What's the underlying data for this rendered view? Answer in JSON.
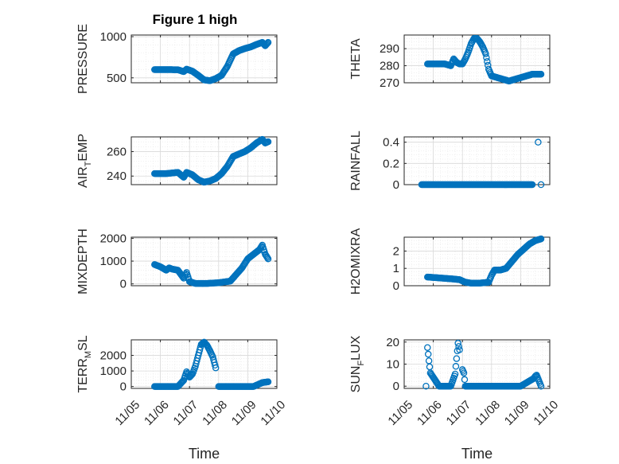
{
  "figure_title": "Figure 1 high",
  "colors": {
    "marker": "#0072bd",
    "axis": "#262626",
    "grid": "#d9d9d9",
    "minor_grid": "#e6e6e6"
  },
  "chart_data": [
    {
      "type": "scatter",
      "title": "Figure 1 high",
      "ylabel": {
        "main": "PRESSURE",
        "sub": ""
      },
      "xlabel": "",
      "x_tick_labels": [],
      "xlim": [
        "11/05",
        "11/10"
      ],
      "ylim": [
        440,
        1020
      ],
      "yticks": [
        500,
        1000
      ],
      "grid": true,
      "legend": "none",
      "series": [
        {
          "points": [
            [
              0.8,
              600
            ],
            [
              1.2,
              600
            ],
            [
              1.6,
              598
            ],
            [
              1.8,
              575
            ],
            [
              1.9,
              605
            ],
            [
              2.1,
              580
            ],
            [
              2.3,
              530
            ],
            [
              2.5,
              475
            ],
            [
              2.7,
              465
            ],
            [
              2.9,
              490
            ],
            [
              3.1,
              530
            ],
            [
              3.3,
              640
            ],
            [
              3.5,
              790
            ],
            [
              3.7,
              830
            ],
            [
              3.9,
              855
            ],
            [
              4.1,
              875
            ],
            [
              4.3,
              905
            ],
            [
              4.5,
              930
            ],
            [
              4.6,
              890
            ],
            [
              4.7,
              930
            ]
          ]
        }
      ]
    },
    {
      "type": "scatter",
      "title": "",
      "ylabel": {
        "main": "THETA",
        "sub": ""
      },
      "xlabel": "",
      "x_tick_labels": [],
      "xlim": [
        "11/05",
        "11/10"
      ],
      "ylim": [
        270,
        298
      ],
      "yticks": [
        270,
        280,
        290
      ],
      "grid": true,
      "legend": "none",
      "series": [
        {
          "points": [
            [
              0.8,
              281
            ],
            [
              1.2,
              281
            ],
            [
              1.4,
              281
            ],
            [
              1.6,
              280
            ],
            [
              1.7,
              284
            ],
            [
              1.8,
              282
            ],
            [
              1.9,
              281
            ],
            [
              2.0,
              281
            ],
            [
              2.1,
              284
            ],
            [
              2.2,
              288
            ],
            [
              2.3,
              293
            ],
            [
              2.4,
              296
            ],
            [
              2.5,
              296
            ],
            [
              2.6,
              294
            ],
            [
              2.7,
              291
            ],
            [
              2.8,
              287
            ],
            [
              2.9,
              278
            ],
            [
              3.0,
              274
            ],
            [
              3.2,
              273
            ],
            [
              3.4,
              272
            ],
            [
              3.6,
              271
            ],
            [
              3.8,
              272
            ],
            [
              4.0,
              273
            ],
            [
              4.2,
              274
            ],
            [
              4.4,
              275
            ],
            [
              4.6,
              275
            ],
            [
              4.7,
              275
            ]
          ]
        }
      ]
    },
    {
      "type": "scatter",
      "title": "",
      "ylabel": {
        "main": "AIR",
        "sub": "T",
        "rest": "EMP"
      },
      "xlabel": "",
      "x_tick_labels": [],
      "xlim": [
        "11/05",
        "11/10"
      ],
      "ylim": [
        233,
        272
      ],
      "yticks": [
        240,
        260
      ],
      "grid": true,
      "legend": "none",
      "series": [
        {
          "points": [
            [
              0.8,
              242
            ],
            [
              1.2,
              242
            ],
            [
              1.6,
              243
            ],
            [
              1.8,
              239
            ],
            [
              1.9,
              243
            ],
            [
              2.1,
              241
            ],
            [
              2.3,
              237
            ],
            [
              2.5,
              235
            ],
            [
              2.7,
              236
            ],
            [
              2.9,
              238
            ],
            [
              3.1,
              242
            ],
            [
              3.3,
              248
            ],
            [
              3.5,
              256
            ],
            [
              3.7,
              258
            ],
            [
              3.9,
              260
            ],
            [
              4.1,
              263
            ],
            [
              4.3,
              267
            ],
            [
              4.5,
              270
            ],
            [
              4.6,
              267
            ],
            [
              4.7,
              268
            ]
          ]
        }
      ]
    },
    {
      "type": "scatter",
      "title": "",
      "ylabel": {
        "main": "RAINFALL",
        "sub": ""
      },
      "xlabel": "",
      "x_tick_labels": [],
      "xlim": [
        "11/05",
        "11/10"
      ],
      "ylim": [
        0,
        0.45
      ],
      "yticks": [
        0,
        0.2,
        0.4
      ],
      "grid": true,
      "legend": "none",
      "series": [
        {
          "points": [
            [
              0.6,
              0
            ],
            [
              1.0,
              0
            ],
            [
              1.5,
              0
            ],
            [
              2.0,
              0
            ],
            [
              2.5,
              0
            ],
            [
              3.0,
              0
            ],
            [
              3.5,
              0
            ],
            [
              4.0,
              0
            ],
            [
              4.4,
              0
            ],
            [
              4.6,
              0.4
            ],
            [
              4.7,
              0
            ]
          ]
        }
      ]
    },
    {
      "type": "scatter",
      "title": "",
      "ylabel": {
        "main": "MIXDEPTH",
        "sub": ""
      },
      "xlabel": "",
      "x_tick_labels": [],
      "xlim": [
        "11/05",
        "11/10"
      ],
      "ylim": [
        -80,
        2050
      ],
      "yticks": [
        0,
        1000,
        2000
      ],
      "grid": true,
      "legend": "none",
      "series": [
        {
          "points": [
            [
              0.8,
              850
            ],
            [
              1.0,
              750
            ],
            [
              1.2,
              600
            ],
            [
              1.3,
              700
            ],
            [
              1.4,
              650
            ],
            [
              1.6,
              600
            ],
            [
              1.8,
              250
            ],
            [
              1.9,
              500
            ],
            [
              2.0,
              100
            ],
            [
              2.2,
              20
            ],
            [
              2.6,
              20
            ],
            [
              3.0,
              50
            ],
            [
              3.4,
              120
            ],
            [
              3.8,
              700
            ],
            [
              4.0,
              1100
            ],
            [
              4.2,
              1300
            ],
            [
              4.4,
              1500
            ],
            [
              4.5,
              1700
            ],
            [
              4.6,
              1300
            ],
            [
              4.7,
              1100
            ]
          ]
        }
      ]
    },
    {
      "type": "scatter",
      "title": "",
      "ylabel": {
        "main": "H2OMIXRA",
        "sub": ""
      },
      "xlabel": "",
      "x_tick_labels": [],
      "xlim": [
        "11/05",
        "11/10"
      ],
      "ylim": [
        0,
        2.8
      ],
      "yticks": [
        0,
        1,
        2
      ],
      "grid": true,
      "legend": "none",
      "series": [
        {
          "points": [
            [
              0.8,
              0.5
            ],
            [
              1.2,
              0.45
            ],
            [
              1.6,
              0.4
            ],
            [
              1.9,
              0.35
            ],
            [
              2.1,
              0.2
            ],
            [
              2.3,
              0.15
            ],
            [
              2.6,
              0.15
            ],
            [
              2.9,
              0.2
            ],
            [
              3.0,
              0.6
            ],
            [
              3.1,
              0.9
            ],
            [
              3.3,
              0.9
            ],
            [
              3.5,
              1.0
            ],
            [
              3.7,
              1.4
            ],
            [
              3.9,
              1.8
            ],
            [
              4.1,
              2.1
            ],
            [
              4.3,
              2.4
            ],
            [
              4.5,
              2.6
            ],
            [
              4.7,
              2.7
            ]
          ]
        }
      ]
    },
    {
      "type": "scatter",
      "title": "",
      "ylabel": {
        "main": "TERR",
        "sub": "M",
        "rest": "SL"
      },
      "xlabel": "Time",
      "x_tick_labels": [
        "11/05",
        "11/06",
        "11/07",
        "11/08",
        "11/09",
        "11/10"
      ],
      "xlim": [
        "11/05",
        "11/10"
      ],
      "ylim": [
        -120,
        3000
      ],
      "yticks": [
        0,
        1000,
        2000
      ],
      "grid": true,
      "legend": "none",
      "series": [
        {
          "points": [
            [
              0.8,
              0
            ],
            [
              1.2,
              0
            ],
            [
              1.6,
              0
            ],
            [
              1.8,
              400
            ],
            [
              1.9,
              950
            ],
            [
              2.0,
              600
            ],
            [
              2.1,
              800
            ],
            [
              2.2,
              1300
            ],
            [
              2.3,
              2000
            ],
            [
              2.4,
              2700
            ],
            [
              2.5,
              2850
            ],
            [
              2.6,
              2650
            ],
            [
              2.7,
              2300
            ],
            [
              2.8,
              1900
            ],
            [
              2.9,
              1200
            ],
            [
              3.0,
              0
            ],
            [
              3.4,
              0
            ],
            [
              3.8,
              0
            ],
            [
              4.2,
              0
            ],
            [
              4.5,
              250
            ],
            [
              4.7,
              300
            ]
          ]
        }
      ]
    },
    {
      "type": "scatter",
      "title": "",
      "ylabel": {
        "main": "SUN",
        "sub": "F",
        "rest": "LUX"
      },
      "xlabel": "Time",
      "x_tick_labels": [
        "11/05",
        "11/06",
        "11/07",
        "11/08",
        "11/09",
        "11/10"
      ],
      "xlim": [
        "11/05",
        "11/10"
      ],
      "ylim": [
        -1,
        21
      ],
      "yticks": [
        0,
        10,
        20
      ],
      "grid": true,
      "legend": "none",
      "series": [
        {
          "points": [
            [
              0.75,
              0
            ],
            [
              0.8,
              17.5
            ],
            [
              0.85,
              11.5
            ],
            [
              0.9,
              6
            ],
            [
              1.2,
              0
            ],
            [
              1.6,
              0
            ],
            [
              1.75,
              5.5
            ],
            [
              1.8,
              12.5
            ],
            [
              1.85,
              19.5
            ],
            [
              1.9,
              16.5
            ],
            [
              2.0,
              7.5
            ],
            [
              2.05,
              6
            ],
            [
              2.1,
              0
            ],
            [
              2.5,
              0
            ],
            [
              3.0,
              0
            ],
            [
              3.5,
              0
            ],
            [
              4.0,
              0
            ],
            [
              4.45,
              3.5
            ],
            [
              4.5,
              4.5
            ],
            [
              4.55,
              5
            ],
            [
              4.7,
              0
            ]
          ]
        }
      ]
    }
  ]
}
